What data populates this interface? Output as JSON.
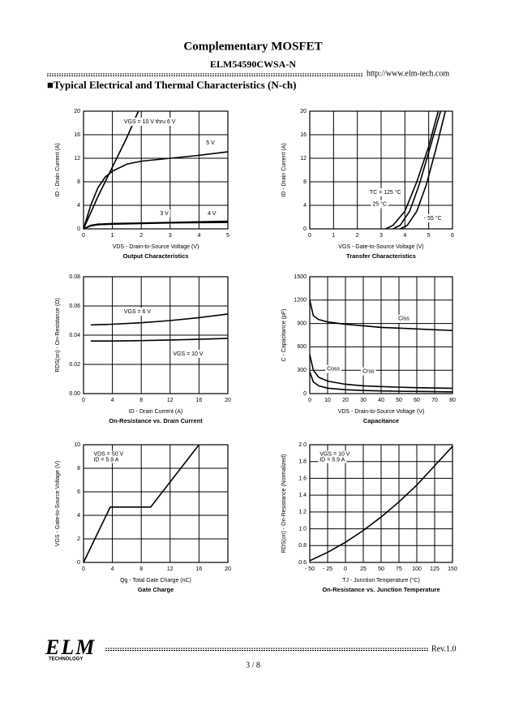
{
  "header": {
    "title": "Complementary MOSFET",
    "part_number": "ELM54590CWSA-N",
    "url": "http://www.elm-tech.com"
  },
  "section_title": "■Typical Electrical and Thermal Characteristics (N-ch)",
  "chart_data": [
    {
      "type": "line",
      "title": "Output Characteristics",
      "x_label": "VDS - Drain-to-Source Voltage (V)",
      "y_label": "ID - Drain Current (A)",
      "xlim": [
        0,
        5
      ],
      "xticks": [
        0,
        1,
        2,
        3,
        4,
        5
      ],
      "ylim": [
        0,
        20
      ],
      "yticks": [
        0,
        4,
        8,
        12,
        16,
        20
      ],
      "grid": true,
      "series": [
        {
          "name": "VGS = 10 V thru 6 V",
          "color": "#000000",
          "x": [
            0,
            0.5,
            1,
            1.5,
            1.9
          ],
          "values": [
            0,
            5.5,
            10.5,
            15.5,
            20
          ]
        },
        {
          "name": "5 V",
          "color": "#000000",
          "x": [
            0,
            0.25,
            0.5,
            0.75,
            1,
            1.5,
            2,
            3,
            4,
            5
          ],
          "values": [
            0,
            4,
            7,
            8.8,
            9.8,
            11,
            11.5,
            12,
            12.5,
            13.1
          ]
        },
        {
          "name": "3 V",
          "color": "#000000",
          "x": [
            0,
            0.25,
            0.5,
            1,
            2,
            3,
            4,
            5
          ],
          "values": [
            0,
            0.5,
            0.7,
            0.8,
            0.9,
            1,
            1.05,
            1.1
          ]
        },
        {
          "name": "4 V",
          "color": "#000000",
          "x": [
            0,
            0.25,
            0.5,
            1,
            2,
            3,
            4,
            5
          ],
          "values": [
            0,
            0.6,
            0.8,
            0.9,
            1,
            1.1,
            1.2,
            1.3
          ]
        }
      ]
    },
    {
      "type": "line",
      "title": "Transfer Characteristics",
      "x_label": "VGS - Gate-to-Source Voltage (V)",
      "y_label": "ID - Drain Current (A)",
      "xlim": [
        0,
        6
      ],
      "xticks": [
        0,
        1,
        2,
        3,
        4,
        5,
        6
      ],
      "ylim": [
        0,
        20
      ],
      "yticks": [
        0,
        4,
        8,
        12,
        16,
        20
      ],
      "grid": true,
      "series": [
        {
          "name": "TC = 125 °C",
          "color": "#000000",
          "x": [
            3.2,
            3.5,
            4,
            4.5,
            5,
            5.4
          ],
          "values": [
            0,
            0.6,
            3,
            8,
            14,
            20
          ]
        },
        {
          "name": "25 °C",
          "color": "#000000",
          "x": [
            3.5,
            3.8,
            4.2,
            4.6,
            5,
            5.5
          ],
          "values": [
            0,
            0.6,
            3,
            7.5,
            13,
            20
          ]
        },
        {
          "name": "- 55 °C",
          "color": "#000000",
          "x": [
            3.8,
            4.1,
            4.5,
            4.9,
            5.3,
            5.7
          ],
          "values": [
            0,
            0.6,
            3,
            7.5,
            13.5,
            20
          ]
        }
      ]
    },
    {
      "type": "line",
      "title": "On-Resistance vs. Drain Current",
      "x_label": "ID - Drain Current (A)",
      "y_label": "RDS(on) - On-Resistance (Ω)",
      "xlim": [
        0,
        20
      ],
      "xticks": [
        0,
        4,
        8,
        12,
        16,
        20
      ],
      "ylim": [
        0,
        0.08
      ],
      "yticks": [
        {
          "value": 0,
          "label": "0.00"
        },
        0.02,
        0.04,
        0.06,
        0.08
      ],
      "grid": true,
      "series": [
        {
          "name": "VGS = 6 V",
          "color": "#000000",
          "x": [
            1,
            4,
            8,
            12,
            16,
            20
          ],
          "values": [
            0.047,
            0.0475,
            0.0485,
            0.05,
            0.052,
            0.0545
          ]
        },
        {
          "name": "VGS = 10 V",
          "color": "#000000",
          "x": [
            1,
            4,
            8,
            12,
            16,
            20
          ],
          "values": [
            0.036,
            0.036,
            0.0363,
            0.0367,
            0.0372,
            0.0378
          ]
        }
      ]
    },
    {
      "type": "line",
      "title": "Capacitance",
      "x_label": "VDS - Drain-to-Source Voltage (V)",
      "y_label": "C - Capacitance (pF)",
      "xlim": [
        0,
        80
      ],
      "xticks": [
        0,
        10,
        20,
        30,
        40,
        50,
        60,
        70,
        80
      ],
      "ylim": [
        0,
        1500
      ],
      "yticks": [
        0,
        300,
        600,
        900,
        1200,
        1500
      ],
      "grid": true,
      "series": [
        {
          "name": "Ciss",
          "color": "#000000",
          "x": [
            0,
            2,
            5,
            10,
            20,
            30,
            40,
            50,
            60,
            70,
            80
          ],
          "values": [
            1200,
            1000,
            950,
            920,
            890,
            870,
            850,
            840,
            830,
            820,
            810
          ]
        },
        {
          "name": "Coss",
          "color": "#000000",
          "x": [
            0,
            2,
            5,
            10,
            20,
            30,
            40,
            50,
            60,
            70,
            80
          ],
          "values": [
            500,
            300,
            210,
            160,
            120,
            100,
            90,
            82,
            76,
            72,
            68
          ]
        },
        {
          "name": "Crss",
          "color": "#000000",
          "x": [
            0,
            2,
            5,
            10,
            20,
            30,
            40,
            50,
            60,
            70,
            80
          ],
          "values": [
            280,
            150,
            100,
            70,
            50,
            40,
            35,
            30,
            28,
            25,
            22
          ]
        }
      ]
    },
    {
      "type": "line",
      "title": "Gate Charge",
      "x_label": "Qg - Total Gate Charge (nC)",
      "y_label": "VGS - Gate-to-Source Voltage (V)",
      "xlim": [
        0,
        20
      ],
      "xticks": [
        0,
        4,
        8,
        12,
        16,
        20
      ],
      "ylim": [
        0,
        10
      ],
      "yticks": [
        0,
        2,
        4,
        6,
        8,
        10
      ],
      "grid": true,
      "annotations": [
        "VDS = 50 V",
        "ID = 5.9 A"
      ],
      "series": [
        {
          "color": "#000000",
          "x": [
            0,
            3.7,
            9.3,
            16
          ],
          "values": [
            0,
            4.7,
            4.7,
            10
          ]
        }
      ]
    },
    {
      "type": "line",
      "title": "On-Resistance vs. Junction Temperature",
      "x_label": "TJ - Junction Temperature (°C)",
      "y_label": "RDS(on) - On-Resistance (Normalized)",
      "xlim": [
        -50,
        150
      ],
      "xticks": [
        {
          "value": -50,
          "label": "- 50"
        },
        {
          "value": -25,
          "label": "- 25"
        },
        0,
        25,
        50,
        75,
        100,
        125,
        150
      ],
      "ylim": [
        0.6,
        2.0
      ],
      "yticks": [
        0.6,
        0.8,
        {
          "value": 1,
          "label": "1.0"
        },
        1.2,
        1.4,
        1.6,
        1.8,
        {
          "value": 2,
          "label": "2.0"
        }
      ],
      "grid": true,
      "annotations": [
        "VGS = 10 V",
        "ID = 5.9 A"
      ],
      "series": [
        {
          "color": "#000000",
          "x": [
            -50,
            -25,
            0,
            25,
            50,
            75,
            100,
            125,
            150
          ],
          "values": [
            0.62,
            0.72,
            0.84,
            0.98,
            1.14,
            1.32,
            1.52,
            1.75,
            1.98
          ]
        }
      ]
    }
  ],
  "footer": {
    "logo": "ELM",
    "logo_subtitle": "TECHNOLOGY",
    "revision": "Rev.1.0",
    "page": "3 / 8"
  }
}
